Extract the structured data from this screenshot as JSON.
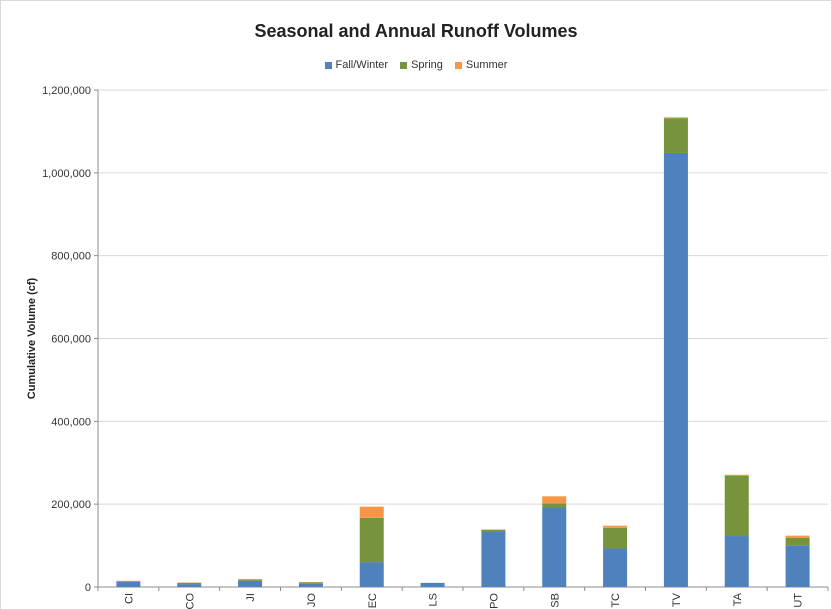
{
  "chart_data": {
    "type": "bar",
    "stacked": true,
    "title": "Seasonal and Annual Runoff Volumes",
    "xlabel": "",
    "ylabel": "Cumulative Volume (cf)",
    "ylim": [
      0,
      1200000
    ],
    "yticks": [
      0,
      200000,
      400000,
      600000,
      800000,
      1000000,
      1200000
    ],
    "ytick_labels": [
      "0",
      "200,000",
      "400,000",
      "600,000",
      "800,000",
      "1,000,000",
      "1,200,000"
    ],
    "grid": "horizontal",
    "legend_position": "top-center",
    "categories": [
      "CI",
      "CO",
      "JI",
      "JO",
      "EC",
      "LS",
      "PO",
      "SB",
      "TC",
      "TV",
      "TA",
      "UT"
    ],
    "series": [
      {
        "name": "Fall/Winter",
        "color": "#4f81bd",
        "values": [
          12000,
          7000,
          15000,
          8000,
          60000,
          10000,
          135000,
          192000,
          93000,
          1048000,
          123000,
          101000
        ]
      },
      {
        "name": "Spring",
        "color": "#77933c",
        "values": [
          2000,
          3000,
          3000,
          3000,
          107000,
          0,
          3000,
          10000,
          50000,
          84000,
          145000,
          18000
        ]
      },
      {
        "name": "Summer",
        "color": "#f79646",
        "values": [
          1000,
          1000,
          1000,
          1000,
          27000,
          0,
          1000,
          17000,
          5000,
          2000,
          3000,
          5000
        ]
      }
    ]
  }
}
